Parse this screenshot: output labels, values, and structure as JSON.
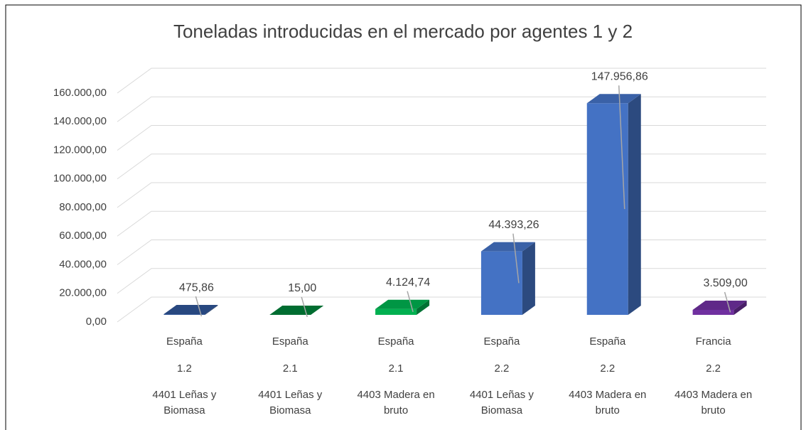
{
  "chart_data": {
    "type": "bar3d",
    "title": "Toneladas introducidas en el mercado por agentes 1 y 2",
    "categories": [
      [
        "España",
        "1.2",
        "4401 Leñas y Biomasa"
      ],
      [
        "España",
        "2.1",
        "4401 Leñas y Biomasa"
      ],
      [
        "España",
        "2.1",
        "4403  Madera en bruto"
      ],
      [
        "España",
        "2.2",
        "4401 Leñas y Biomasa"
      ],
      [
        "España",
        "2.2",
        "4403  Madera en bruto"
      ],
      [
        "Francia",
        "2.2",
        "4403  Madera en bruto"
      ]
    ],
    "values": [
      475.86,
      15,
      4124.74,
      44393.26,
      147956.86,
      3509
    ],
    "value_labels": [
      "475,86",
      "15,00",
      "4.124,74",
      "44.393,26",
      "147.956,86",
      "3.509,00"
    ],
    "colors": [
      "#2f5597",
      "#00803a",
      "#00b050",
      "#4472c4",
      "#4472c4",
      "#7030a0"
    ],
    "ylim": [
      0,
      160000
    ],
    "yticks": [
      {
        "value": 0,
        "label": "0,00"
      },
      {
        "value": 20000,
        "label": "20.000,00"
      },
      {
        "value": 40000,
        "label": "40.000,00"
      },
      {
        "value": 60000,
        "label": "60.000,00"
      },
      {
        "value": 80000,
        "label": "80.000,00"
      },
      {
        "value": 100000,
        "label": "100.000,00"
      },
      {
        "value": 120000,
        "label": "120.000,00"
      },
      {
        "value": 140000,
        "label": "140.000,00"
      },
      {
        "value": 160000,
        "label": "160.000,00"
      }
    ],
    "grid": true
  }
}
